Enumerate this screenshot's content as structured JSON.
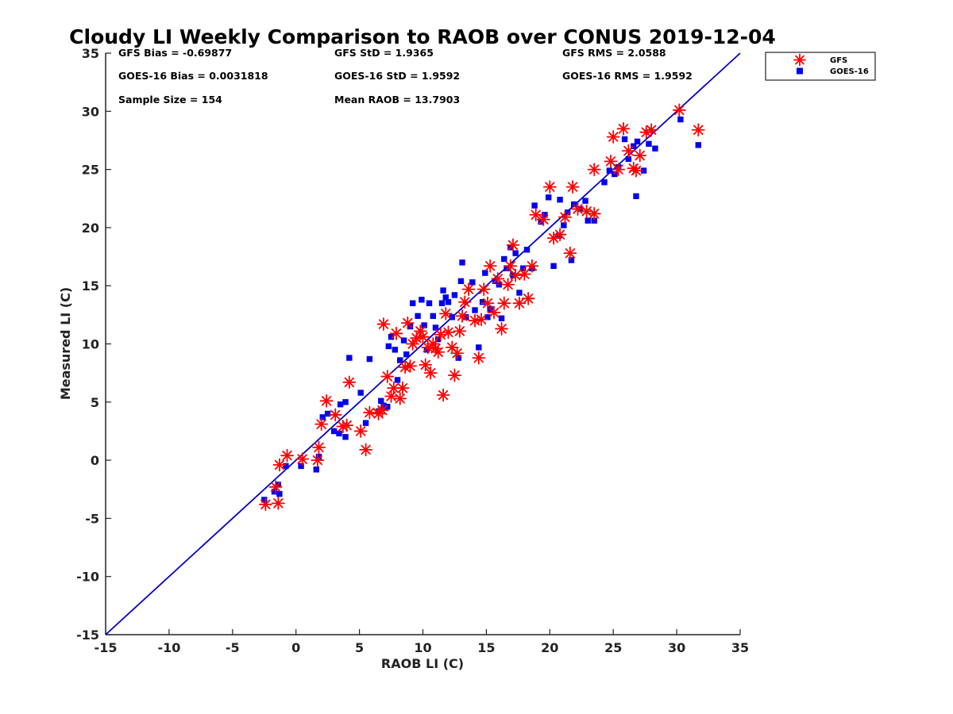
{
  "chart_data": {
    "type": "scatter",
    "title": "Cloudy LI Weekly Comparison to RAOB over CONUS 2019-12-04",
    "xlabel": "RAOB LI (C)",
    "ylabel": "Measured LI (C)",
    "xlim": [
      -15,
      35
    ],
    "ylim": [
      -15,
      35
    ],
    "xticks": [
      "-15",
      "-10",
      "-5",
      "0",
      "5",
      "10",
      "15",
      "20",
      "25",
      "30",
      "35"
    ],
    "yticks": [
      "-15",
      "-10",
      "-5",
      "0",
      "5",
      "10",
      "15",
      "20",
      "25",
      "30",
      "35"
    ],
    "grid": false,
    "legend_position": "outside top-right",
    "reference_line": {
      "x": [
        -15,
        35
      ],
      "y": [
        -15,
        35
      ],
      "color": "#0000cc"
    },
    "stats": {
      "gfs_bias": "GFS Bias = -0.69877",
      "gfs_std": "GFS StD = 1.9365",
      "gfs_rms": "GFS RMS = 2.0588",
      "goes_bias": "GOES-16 Bias = 0.0031818",
      "goes_std": "GOES-16 StD = 1.9592",
      "goes_rms": "GOES-16 RMS = 1.9592",
      "sample_size": "Sample Size = 154",
      "mean_raob": "Mean RAOB = 13.7903"
    },
    "series": [
      {
        "name": "GFS",
        "marker": "asterisk",
        "color": "#ff0000",
        "points": [
          [
            -2.4,
            -3.8
          ],
          [
            -1.6,
            -2.3
          ],
          [
            -1.4,
            -3.7
          ],
          [
            -1.3,
            -0.4
          ],
          [
            -0.7,
            0.4
          ],
          [
            0.5,
            0.1
          ],
          [
            1.7,
            0.0
          ],
          [
            1.8,
            1.1
          ],
          [
            2.0,
            3.1
          ],
          [
            2.4,
            5.1
          ],
          [
            3.1,
            3.9
          ],
          [
            3.7,
            2.9
          ],
          [
            4.0,
            3.0
          ],
          [
            4.2,
            6.7
          ],
          [
            5.1,
            2.5
          ],
          [
            5.5,
            0.9
          ],
          [
            5.8,
            4.1
          ],
          [
            6.5,
            4.0
          ],
          [
            6.8,
            4.3
          ],
          [
            6.9,
            11.7
          ],
          [
            7.2,
            7.2
          ],
          [
            7.5,
            5.5
          ],
          [
            7.7,
            6.2
          ],
          [
            7.9,
            10.9
          ],
          [
            8.2,
            5.3
          ],
          [
            8.4,
            6.2
          ],
          [
            8.6,
            8.0
          ],
          [
            8.8,
            11.8
          ],
          [
            9.0,
            8.1
          ],
          [
            9.2,
            10.0
          ],
          [
            9.5,
            10.5
          ],
          [
            9.8,
            11.1
          ],
          [
            10.0,
            10.6
          ],
          [
            10.2,
            8.2
          ],
          [
            10.4,
            9.7
          ],
          [
            10.6,
            7.5
          ],
          [
            10.8,
            10.0
          ],
          [
            11.0,
            9.6
          ],
          [
            11.2,
            9.3
          ],
          [
            11.4,
            10.8
          ],
          [
            11.6,
            5.6
          ],
          [
            11.8,
            12.6
          ],
          [
            12.0,
            11.0
          ],
          [
            12.3,
            9.7
          ],
          [
            12.5,
            7.3
          ],
          [
            12.7,
            9.2
          ],
          [
            12.9,
            11.1
          ],
          [
            13.1,
            12.4
          ],
          [
            13.3,
            13.6
          ],
          [
            13.6,
            14.7
          ],
          [
            14.1,
            12.0
          ],
          [
            14.4,
            8.8
          ],
          [
            14.6,
            12.1
          ],
          [
            14.8,
            14.7
          ],
          [
            15.1,
            13.5
          ],
          [
            15.3,
            16.7
          ],
          [
            15.6,
            12.7
          ],
          [
            15.9,
            15.6
          ],
          [
            16.2,
            11.3
          ],
          [
            16.4,
            13.5
          ],
          [
            16.7,
            15.1
          ],
          [
            16.9,
            16.7
          ],
          [
            17.1,
            18.5
          ],
          [
            17.3,
            15.9
          ],
          [
            17.6,
            13.5
          ],
          [
            18.0,
            16.0
          ],
          [
            18.3,
            13.9
          ],
          [
            18.6,
            16.7
          ],
          [
            18.9,
            21.1
          ],
          [
            19.5,
            20.7
          ],
          [
            20.0,
            23.5
          ],
          [
            20.3,
            19.1
          ],
          [
            20.8,
            19.4
          ],
          [
            21.2,
            20.9
          ],
          [
            21.6,
            17.8
          ],
          [
            21.8,
            23.5
          ],
          [
            22.2,
            21.6
          ],
          [
            22.9,
            21.4
          ],
          [
            23.5,
            21.2
          ],
          [
            23.5,
            25.0
          ],
          [
            24.8,
            25.7
          ],
          [
            25.0,
            27.8
          ],
          [
            25.4,
            25.0
          ],
          [
            25.8,
            28.5
          ],
          [
            26.2,
            26.6
          ],
          [
            26.6,
            25.1
          ],
          [
            26.8,
            24.9
          ],
          [
            27.1,
            26.2
          ],
          [
            27.6,
            28.2
          ],
          [
            28.0,
            28.4
          ],
          [
            30.2,
            30.1
          ],
          [
            31.7,
            28.4
          ]
        ]
      },
      {
        "name": "GOES-16",
        "marker": "square",
        "color": "#0000ee",
        "points": [
          [
            -2.5,
            -3.4
          ],
          [
            -1.7,
            -2.7
          ],
          [
            -1.4,
            -2.1
          ],
          [
            -1.3,
            -2.9
          ],
          [
            -0.8,
            -0.5
          ],
          [
            0.4,
            -0.5
          ],
          [
            1.6,
            -0.8
          ],
          [
            1.8,
            0.3
          ],
          [
            2.1,
            3.7
          ],
          [
            2.5,
            4.0
          ],
          [
            3.0,
            2.5
          ],
          [
            3.4,
            2.3
          ],
          [
            3.5,
            4.8
          ],
          [
            3.9,
            5.0
          ],
          [
            3.9,
            2.0
          ],
          [
            4.2,
            8.8
          ],
          [
            5.1,
            5.8
          ],
          [
            5.5,
            3.2
          ],
          [
            5.8,
            8.7
          ],
          [
            6.5,
            4.2
          ],
          [
            6.7,
            5.1
          ],
          [
            6.9,
            4.7
          ],
          [
            7.2,
            4.6
          ],
          [
            7.3,
            9.8
          ],
          [
            7.5,
            10.6
          ],
          [
            7.8,
            9.5
          ],
          [
            8.0,
            6.9
          ],
          [
            8.2,
            8.6
          ],
          [
            8.5,
            10.3
          ],
          [
            8.7,
            9.1
          ],
          [
            9.0,
            11.5
          ],
          [
            9.2,
            13.5
          ],
          [
            9.6,
            12.4
          ],
          [
            9.9,
            13.8
          ],
          [
            10.1,
            11.6
          ],
          [
            10.3,
            9.5
          ],
          [
            10.5,
            13.5
          ],
          [
            10.8,
            12.4
          ],
          [
            11.0,
            11.4
          ],
          [
            11.2,
            10.4
          ],
          [
            11.5,
            13.5
          ],
          [
            11.6,
            14.6
          ],
          [
            11.8,
            14.0
          ],
          [
            12.0,
            13.6
          ],
          [
            12.3,
            12.3
          ],
          [
            12.5,
            14.2
          ],
          [
            12.8,
            8.8
          ],
          [
            13.0,
            15.4
          ],
          [
            13.1,
            17.0
          ],
          [
            13.4,
            12.3
          ],
          [
            13.9,
            15.3
          ],
          [
            14.1,
            12.9
          ],
          [
            14.4,
            9.7
          ],
          [
            14.7,
            13.6
          ],
          [
            14.9,
            16.1
          ],
          [
            15.1,
            12.3
          ],
          [
            15.3,
            13.0
          ],
          [
            15.7,
            15.4
          ],
          [
            16.0,
            15.1
          ],
          [
            16.2,
            12.2
          ],
          [
            16.4,
            17.3
          ],
          [
            16.6,
            16.5
          ],
          [
            16.9,
            18.3
          ],
          [
            17.1,
            15.9
          ],
          [
            17.3,
            17.8
          ],
          [
            17.6,
            14.4
          ],
          [
            17.9,
            16.5
          ],
          [
            18.2,
            18.1
          ],
          [
            18.6,
            16.5
          ],
          [
            18.8,
            21.9
          ],
          [
            19.3,
            20.5
          ],
          [
            19.6,
            21.1
          ],
          [
            19.9,
            22.6
          ],
          [
            20.3,
            16.7
          ],
          [
            20.7,
            19.3
          ],
          [
            20.8,
            22.4
          ],
          [
            21.1,
            20.2
          ],
          [
            21.4,
            21.3
          ],
          [
            21.7,
            17.2
          ],
          [
            21.9,
            22.0
          ],
          [
            22.4,
            21.6
          ],
          [
            22.8,
            22.3
          ],
          [
            23.0,
            20.6
          ],
          [
            23.5,
            20.6
          ],
          [
            24.3,
            23.9
          ],
          [
            24.7,
            24.9
          ],
          [
            25.1,
            24.6
          ],
          [
            25.4,
            25.2
          ],
          [
            25.9,
            27.6
          ],
          [
            26.2,
            25.9
          ],
          [
            26.6,
            27.0
          ],
          [
            26.8,
            22.7
          ],
          [
            26.9,
            27.4
          ],
          [
            27.4,
            24.9
          ],
          [
            27.8,
            27.2
          ],
          [
            28.3,
            26.8
          ],
          [
            30.3,
            29.3
          ],
          [
            31.7,
            27.1
          ]
        ]
      }
    ]
  }
}
